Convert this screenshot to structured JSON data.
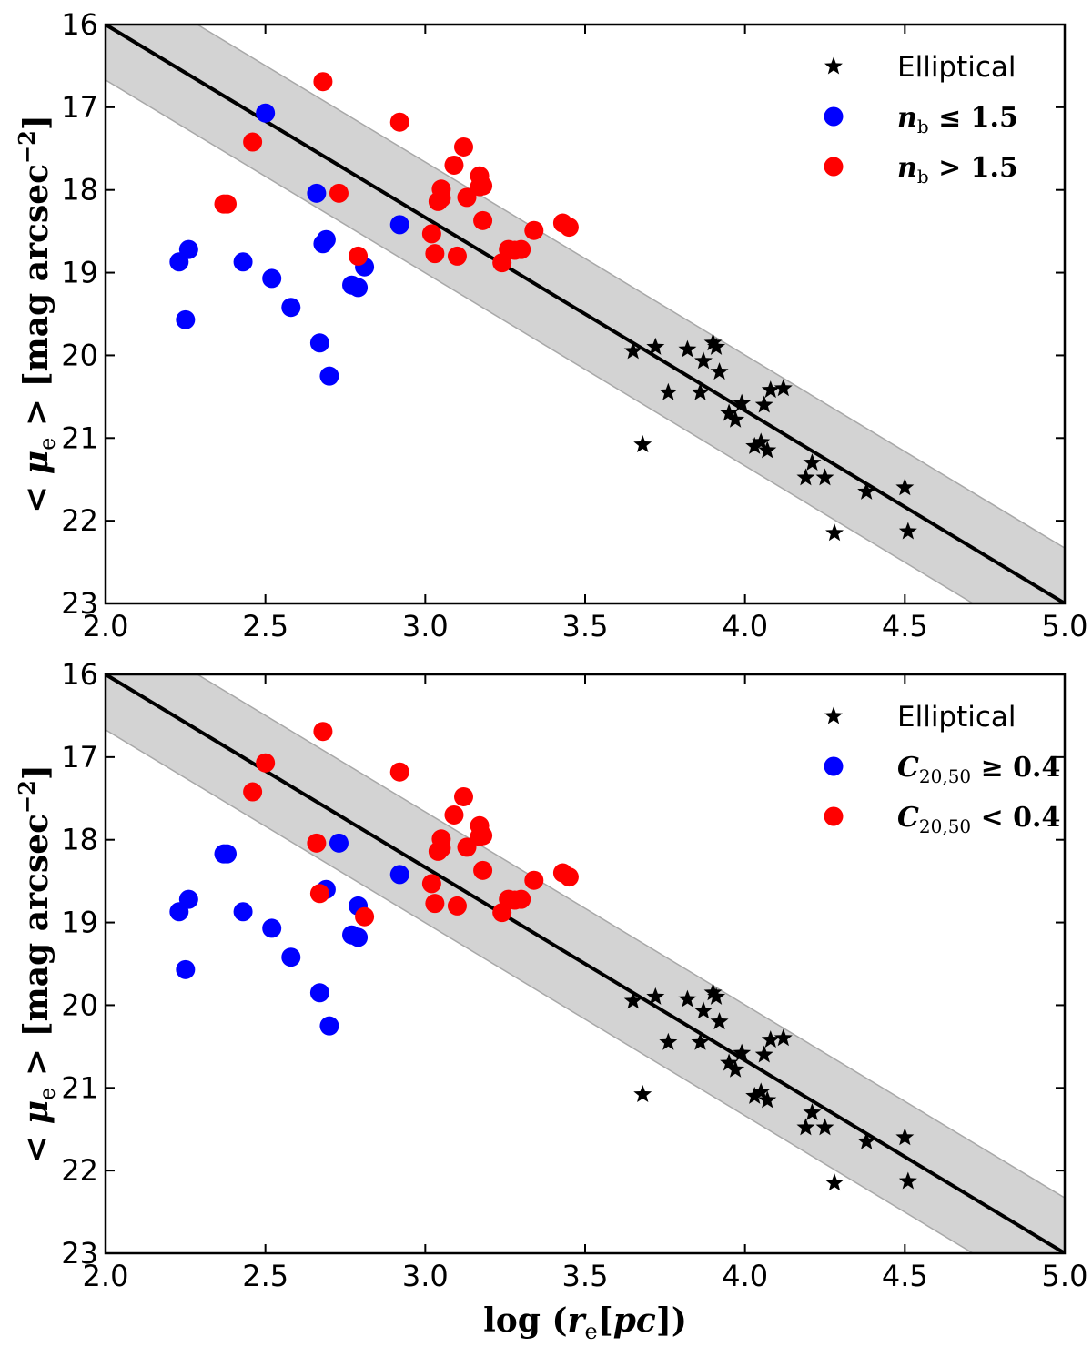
{
  "chart_data": [
    {
      "type": "scatter",
      "panel": "top",
      "xlim": [
        2.0,
        5.0
      ],
      "ylim": [
        23,
        16
      ],
      "xticks": [
        "2.0",
        "2.5",
        "3.0",
        "3.5",
        "4.0",
        "4.5",
        "5.0"
      ],
      "yticks": [
        "16",
        "17",
        "18",
        "19",
        "20",
        "21",
        "22",
        "23"
      ],
      "ylabel": {
        "pre": "< ",
        "mu": "μ",
        "sub": "e",
        "post": " > [mag arcsec",
        "sup": "−2",
        "end": "]"
      },
      "xlabel": "",
      "fit_line": {
        "x": [
          2.0,
          5.0
        ],
        "y": [
          16.0,
          23.0
        ]
      },
      "band_halfwidth": 0.67,
      "legend": [
        {
          "marker": "star",
          "color": "#000000",
          "label": "Elliptical",
          "math": false
        },
        {
          "marker": "circle",
          "color": "#0000ff",
          "label": "n_b ≤ 1.5",
          "math": true,
          "var": "n",
          "sub": "b",
          "rest": " ≤ 1.5"
        },
        {
          "marker": "circle",
          "color": "#ff0000",
          "label": "n_b > 1.5",
          "math": true,
          "var": "n",
          "sub": "b",
          "rest": " > 1.5"
        }
      ],
      "series": [
        {
          "name": "Elliptical",
          "marker": "star",
          "color": "#000000",
          "x": [
            3.65,
            3.72,
            3.82,
            3.87,
            3.9,
            3.91,
            3.92,
            3.76,
            3.86,
            3.95,
            3.97,
            3.99,
            4.06,
            4.08,
            4.12,
            4.03,
            4.05,
            4.07,
            3.68,
            4.19,
            4.21,
            4.25,
            4.38,
            4.5,
            4.28,
            4.51
          ],
          "y": [
            19.95,
            19.9,
            19.93,
            20.07,
            19.85,
            19.9,
            20.2,
            20.45,
            20.45,
            20.7,
            20.78,
            20.58,
            20.6,
            20.42,
            20.4,
            21.1,
            21.05,
            21.15,
            21.08,
            21.48,
            21.3,
            21.48,
            21.65,
            21.6,
            22.15,
            22.13
          ]
        },
        {
          "name": "n_b ≤ 1.5",
          "marker": "circle",
          "color": "#0000ff",
          "x": [
            2.5,
            2.26,
            2.23,
            2.25,
            2.43,
            2.52,
            2.58,
            2.66,
            2.68,
            2.69,
            2.67,
            2.7,
            2.77,
            2.79,
            2.81,
            2.92
          ],
          "y": [
            17.07,
            18.72,
            18.87,
            19.57,
            18.87,
            19.07,
            19.42,
            18.04,
            18.65,
            18.6,
            19.85,
            20.25,
            19.15,
            19.18,
            18.93,
            18.42
          ]
        },
        {
          "name": "n_b > 1.5",
          "marker": "circle",
          "color": "#ff0000",
          "x": [
            2.68,
            2.46,
            2.37,
            2.38,
            2.73,
            2.79,
            2.92,
            3.02,
            3.03,
            3.04,
            3.05,
            3.05,
            3.09,
            3.1,
            3.12,
            3.13,
            3.17,
            3.17,
            3.18,
            3.18,
            3.24,
            3.26,
            3.28,
            3.3,
            3.34,
            3.43,
            3.45
          ],
          "y": [
            16.69,
            17.42,
            18.17,
            18.17,
            18.04,
            18.8,
            17.18,
            18.53,
            18.77,
            18.14,
            18.1,
            17.99,
            17.7,
            18.8,
            17.48,
            18.09,
            17.83,
            17.96,
            18.37,
            17.95,
            18.88,
            18.72,
            18.73,
            18.72,
            18.49,
            18.4,
            18.45
          ]
        }
      ]
    },
    {
      "type": "scatter",
      "panel": "bottom",
      "xlim": [
        2.0,
        5.0
      ],
      "ylim": [
        23,
        16
      ],
      "xticks": [
        "2.0",
        "2.5",
        "3.0",
        "3.5",
        "4.0",
        "4.5",
        "5.0"
      ],
      "yticks": [
        "16",
        "17",
        "18",
        "19",
        "20",
        "21",
        "22",
        "23"
      ],
      "ylabel": {
        "pre": "< ",
        "mu": "μ",
        "sub": "e",
        "post": " > [mag arcsec",
        "sup": "−2",
        "end": "]"
      },
      "xlabel": {
        "pre": "log (",
        "var": "r",
        "sub": "e",
        "post": "[pc])"
      },
      "fit_line": {
        "x": [
          2.0,
          5.0
        ],
        "y": [
          16.0,
          23.0
        ]
      },
      "band_halfwidth": 0.67,
      "legend": [
        {
          "marker": "star",
          "color": "#000000",
          "label": "Elliptical",
          "math": false
        },
        {
          "marker": "circle",
          "color": "#0000ff",
          "label": "C_20,50 ≥ 0.4",
          "math": true,
          "var": "C",
          "sub": "20,50",
          "rest": " ≥ 0.4"
        },
        {
          "marker": "circle",
          "color": "#ff0000",
          "label": "C_20,50 < 0.4",
          "math": true,
          "var": "C",
          "sub": "20,50",
          "rest": " < 0.4"
        }
      ],
      "series": [
        {
          "name": "Elliptical",
          "marker": "star",
          "color": "#000000",
          "x": [
            3.65,
            3.72,
            3.82,
            3.87,
            3.9,
            3.91,
            3.92,
            3.76,
            3.86,
            3.95,
            3.97,
            3.99,
            4.06,
            4.08,
            4.12,
            4.03,
            4.05,
            4.07,
            3.68,
            4.19,
            4.21,
            4.25,
            4.38,
            4.5,
            4.28,
            4.51
          ],
          "y": [
            19.95,
            19.9,
            19.93,
            20.07,
            19.85,
            19.9,
            20.2,
            20.45,
            20.45,
            20.7,
            20.78,
            20.58,
            20.6,
            20.42,
            20.4,
            21.1,
            21.05,
            21.15,
            21.08,
            21.48,
            21.3,
            21.48,
            21.65,
            21.6,
            22.15,
            22.13
          ]
        },
        {
          "name": "C_20,50 ≥ 0.4",
          "marker": "circle",
          "color": "#0000ff",
          "x": [
            2.37,
            2.38,
            2.26,
            2.23,
            2.25,
            2.43,
            2.52,
            2.58,
            2.73,
            2.69,
            2.79,
            2.67,
            2.7,
            2.77,
            2.79,
            2.92
          ],
          "y": [
            18.17,
            18.17,
            18.72,
            18.87,
            19.57,
            18.87,
            19.07,
            19.42,
            18.04,
            18.6,
            18.8,
            19.85,
            20.25,
            19.15,
            19.18,
            18.42
          ]
        },
        {
          "name": "C_20,50 < 0.4",
          "marker": "circle",
          "color": "#ff0000",
          "x": [
            2.68,
            2.5,
            2.46,
            2.66,
            2.67,
            2.81,
            2.92,
            3.02,
            3.03,
            3.04,
            3.05,
            3.05,
            3.09,
            3.1,
            3.12,
            3.13,
            3.17,
            3.17,
            3.18,
            3.18,
            3.24,
            3.26,
            3.28,
            3.3,
            3.34,
            3.43,
            3.45
          ],
          "y": [
            16.69,
            17.07,
            17.42,
            18.04,
            18.65,
            18.93,
            17.18,
            18.53,
            18.77,
            18.14,
            18.1,
            17.99,
            17.7,
            18.8,
            17.48,
            18.09,
            17.83,
            17.96,
            18.37,
            17.95,
            18.88,
            18.72,
            18.73,
            18.72,
            18.49,
            18.4,
            18.45
          ]
        }
      ]
    }
  ]
}
